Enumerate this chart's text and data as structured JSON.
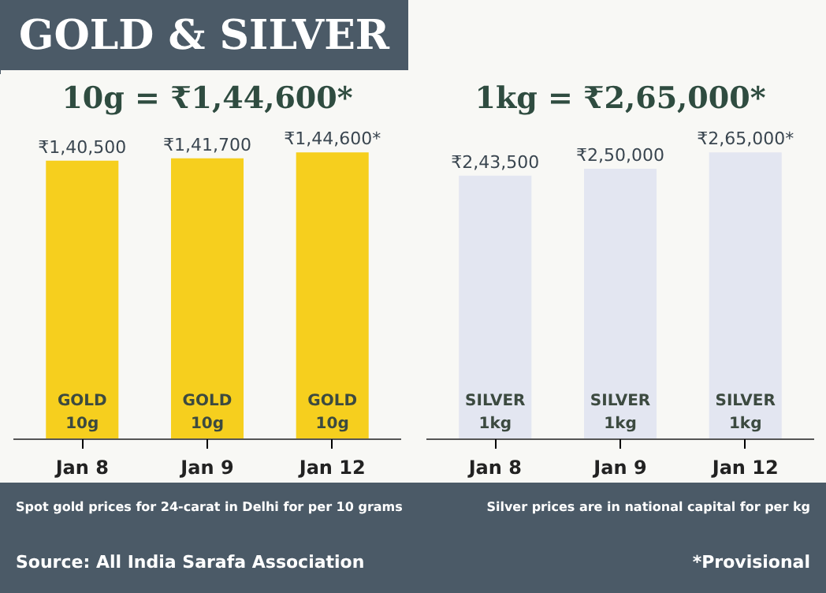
{
  "chart_data": [
    {
      "type": "bar",
      "title": "GOLD & SILVER",
      "subtitle": "10g = ₹1,44,600*",
      "categories": [
        "Jan 8",
        "Jan 9",
        "Jan 12"
      ],
      "values": [
        140500,
        141700,
        144600
      ],
      "color": "#f6cf1e",
      "value_labels": [
        "₹1,40,500",
        "₹1,41,700",
        "₹1,44,600*"
      ],
      "tick_labels": "x",
      "grid": false,
      "annotations": [
        "GOLD\n10g",
        "GOLD\n10g",
        "GOLD\n10g",
        "Spot gold prices for 24-carat in Delhi for per 10 grams",
        "Source: All India Sarafa Association"
      ]
    },
    {
      "type": "bar",
      "subtitle": "1kg = ₹2,65,000*",
      "categories": [
        "Jan 8",
        "Jan 9",
        "Jan 12"
      ],
      "values": [
        243500,
        250000,
        265000
      ],
      "color": "#e3e6f1",
      "value_labels": [
        "₹2,43,500",
        "₹2,50,000",
        "₹2,65,000*"
      ],
      "tick_labels": "x",
      "grid": false,
      "annotations": [
        "SILVER\n1kg",
        "SILVER\n1kg",
        "SILVER\n1kg",
        "Silver prices are in national capital for per kg",
        "*Provisional"
      ]
    }
  ]
}
